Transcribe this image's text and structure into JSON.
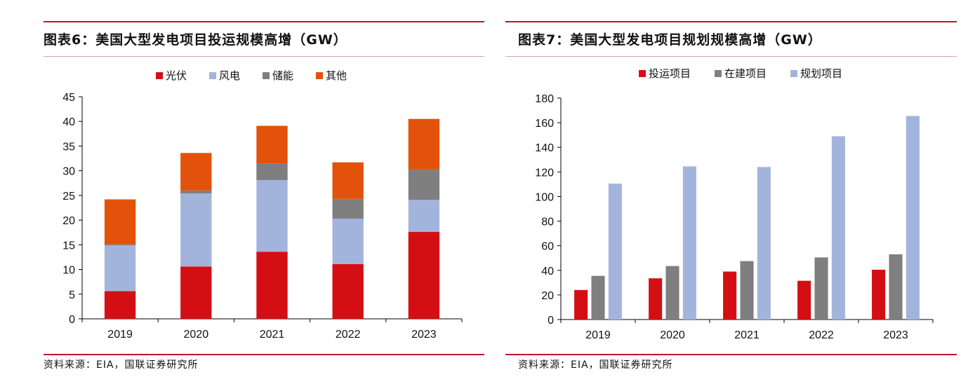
{
  "left": {
    "title": "图表6：美国大型发电项目投运规模高增（GW）",
    "source": "资料来源：EIA，国联证券研究所",
    "chart_data": {
      "type": "bar",
      "stacked": true,
      "categories": [
        "2019",
        "2020",
        "2021",
        "2022",
        "2023"
      ],
      "series": [
        {
          "name": "光伏",
          "color": "#d40f14",
          "values": [
            5.6,
            10.6,
            13.6,
            11.1,
            17.6
          ]
        },
        {
          "name": "风电",
          "color": "#a3b4dc",
          "values": [
            9.3,
            14.8,
            14.5,
            9.2,
            6.5
          ]
        },
        {
          "name": "储能",
          "color": "#7f7f7f",
          "values": [
            0.2,
            0.6,
            3.4,
            4.0,
            6.2
          ]
        },
        {
          "name": "其他",
          "color": "#e2520a",
          "values": [
            9.1,
            7.6,
            7.6,
            7.4,
            10.2
          ]
        }
      ],
      "yticks": [
        "0",
        "5",
        "10",
        "15",
        "20",
        "25",
        "30",
        "35",
        "40",
        "45"
      ],
      "ylim": [
        0,
        45
      ],
      "legend": "top"
    }
  },
  "right": {
    "title": "图表7：美国大型发电项目规划规模高增（GW）",
    "source": "资料来源：EIA，国联证券研究所",
    "chart_data": {
      "type": "bar",
      "stacked": false,
      "categories": [
        "2019",
        "2020",
        "2021",
        "2022",
        "2023"
      ],
      "series": [
        {
          "name": "投运项目",
          "color": "#d40f14",
          "values": [
            24,
            33.5,
            39,
            31.5,
            40.5
          ]
        },
        {
          "name": "在建项目",
          "color": "#7f7f7f",
          "values": [
            35.5,
            43.5,
            47.5,
            50.5,
            53
          ]
        },
        {
          "name": "规划项目",
          "color": "#a3b4dc",
          "values": [
            110.5,
            124.5,
            124,
            149,
            165.5
          ]
        }
      ],
      "yticks": [
        "0",
        "20",
        "40",
        "60",
        "80",
        "100",
        "120",
        "140",
        "160",
        "180"
      ],
      "ylim": [
        0,
        180
      ],
      "legend": "top"
    }
  }
}
